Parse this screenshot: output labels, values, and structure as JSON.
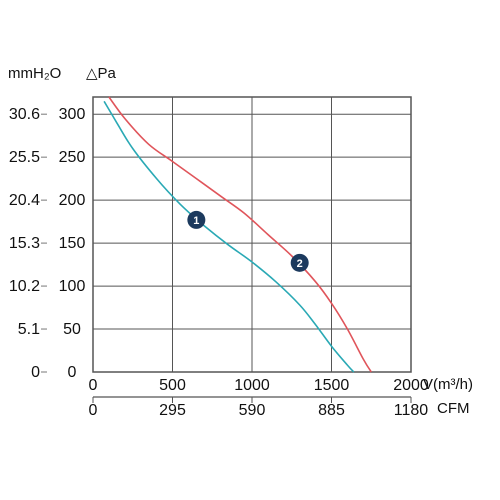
{
  "chart_data": {
    "type": "line",
    "x_unit": "V(m³/h)",
    "x_unit_secondary": "CFM",
    "y_unit": "△Pa",
    "y_unit_secondary": "mmH₂O",
    "xlim": [
      0,
      2000
    ],
    "ylim": [
      0,
      320
    ],
    "grid": true,
    "x_ticks": [
      "0",
      "500",
      "1000",
      "1500",
      "2000"
    ],
    "x_ticks_secondary": [
      "0",
      "295",
      "590",
      "885",
      "1180"
    ],
    "y_ticks": [
      "0",
      "50",
      "100",
      "150",
      "200",
      "250",
      "300"
    ],
    "y_ticks_secondary": [
      "0",
      "5.1",
      "10.2",
      "15.3",
      "20.4",
      "25.5",
      "30.6"
    ],
    "series": [
      {
        "marker": "1",
        "color": "#2aa9b5",
        "x": [
          70,
          150,
          250,
          400,
          550,
          700,
          850,
          1000,
          1150,
          1300,
          1400,
          1500,
          1600,
          1640
        ],
        "y": [
          315,
          290,
          260,
          225,
          195,
          170,
          148,
          128,
          105,
          78,
          55,
          30,
          8,
          0
        ],
        "marker_point": [
          650,
          177
        ]
      },
      {
        "marker": "2",
        "color": "#e0555b",
        "x": [
          100,
          200,
          350,
          500,
          650,
          800,
          950,
          1100,
          1250,
          1400,
          1500,
          1600,
          1700,
          1750
        ],
        "y": [
          320,
          295,
          265,
          245,
          225,
          205,
          185,
          160,
          135,
          105,
          80,
          50,
          15,
          0
        ],
        "marker_point": [
          1300,
          127
        ]
      }
    ]
  }
}
